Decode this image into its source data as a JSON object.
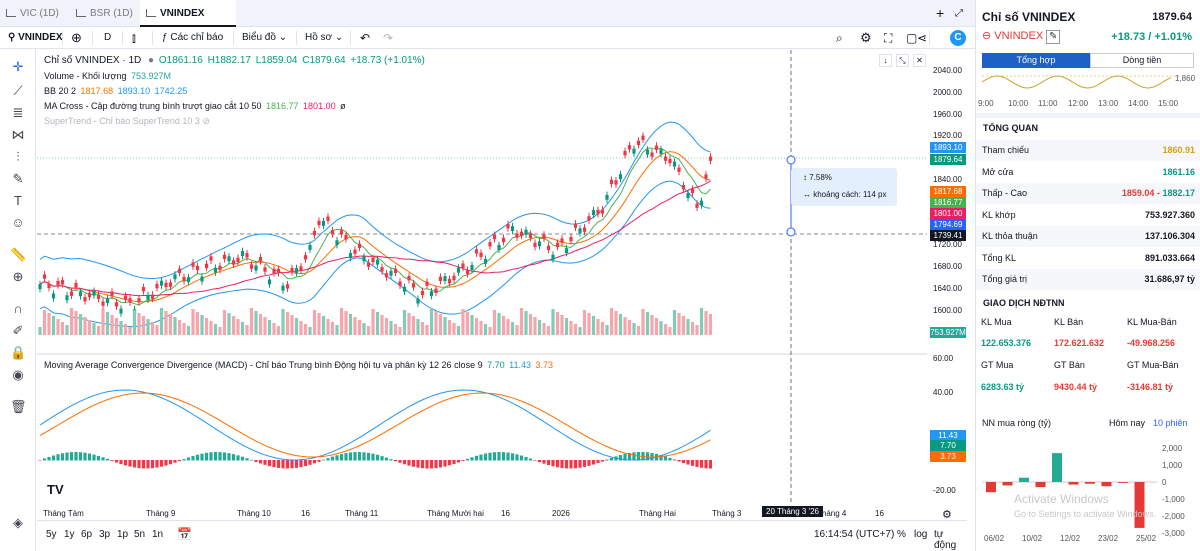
{
  "tabs": [
    {
      "label": "VIC (1D)"
    },
    {
      "label": "BSR (1D)"
    },
    {
      "label": "VNINDEX (1D)"
    }
  ],
  "toolbar": {
    "symbol": "VNINDEX",
    "interval": "D",
    "indicators": "Các chỉ báo",
    "chart_type": "Biểu đồ",
    "profile": "Hồ sơ"
  },
  "legend": {
    "main": {
      "name": "Chỉ số VNINDEX · 1D",
      "o": "O1861.16",
      "h": "H1882.17",
      "l": "L1859.04",
      "c": "C1879.64",
      "chg": "+18.73 (+1.01%)"
    },
    "volume": {
      "name": "Volume - Khối lượng",
      "value": "753.927M"
    },
    "bb": {
      "name": "BB 20 2",
      "v1": "1817.68",
      "v2": "1893.10",
      "v3": "1742.25"
    },
    "ma": {
      "name": "MA Cross - Cập đường trung bình trượt giao cắt 10 50",
      "v1": "1816.77",
      "v2": "1801.00",
      "v3": "ø"
    },
    "st": {
      "name": "SuperTrend - Chỉ báo SuperTrend 10 3"
    },
    "macd": {
      "name": "Moving Average Convergence Divergence (MACD) - Chỉ báo Trung bình Động hội tụ và phân kỳ 12 26 close 9",
      "v1": "7.70",
      "v2": "11.43",
      "v3": "3.73"
    }
  },
  "price_axis": [
    "2040.00",
    "2000.00",
    "1960.00",
    "1920.00",
    "1880.00",
    "1840.00",
    "1800.00",
    "1760.00",
    "1720.00",
    "1680.00",
    "1640.00",
    "1600.00"
  ],
  "macd_axis": [
    "60.00",
    "40.00",
    "20.00",
    "-20.00"
  ],
  "badges": [
    {
      "label": "1893.10",
      "color": "#2196f3"
    },
    {
      "label": "1879.64",
      "color": "#089981"
    },
    {
      "label": "1817.68",
      "color": "#ff6d00"
    },
    {
      "label": "1816.77",
      "color": "#4caf50"
    },
    {
      "label": "1801.00",
      "color": "#e91e63"
    },
    {
      "label": "1794.69",
      "color": "#2962ff"
    },
    {
      "label": "1739.41",
      "color": "#131722"
    },
    {
      "label": "753.927M",
      "color": "#26a69a"
    },
    {
      "label": "11.43",
      "color": "#2196f3"
    },
    {
      "label": "7.70",
      "color": "#089981"
    },
    {
      "label": "3.73",
      "color": "#ff6d00"
    }
  ],
  "measure": {
    "pct": "7.58%",
    "dist": "khoảng cách: 114 px"
  },
  "time_axis": [
    "Tháng Tám",
    "Tháng 9",
    "Tháng 10",
    "16",
    "Tháng 11",
    "Tháng Mười hai",
    "16",
    "2026",
    "Tháng Hai",
    "Tháng 3",
    "20 Tháng 3 '26",
    "Tháng 4",
    "16"
  ],
  "bottom": {
    "ranges": [
      "5y",
      "1y",
      "6p",
      "3p",
      "1p",
      "5n",
      "1n"
    ],
    "time": "16:14:54 (UTC+7)",
    "pct": "%",
    "log": "log",
    "auto": "tự động"
  },
  "panel": {
    "title": "Chỉ số VNINDEX",
    "price": "1879.64",
    "symbol": "VNINDEX",
    "change": "+18.73 / +1.01%",
    "tab1": "Tổng hợp",
    "tab2": "Dòng tiền",
    "spark_level": "1,860",
    "spark_times": [
      "9:00",
      "10:00",
      "11:00",
      "12:00",
      "13:00",
      "14:00",
      "15:00"
    ],
    "overview_title": "TỔNG QUAN",
    "rows": [
      {
        "label": "Tham chiếu",
        "value": "1860.91",
        "cls": "gold"
      },
      {
        "label": "Mở cửa",
        "value": "1861.16",
        "cls": "green"
      },
      {
        "label": "Thấp - Cao",
        "value": "1859.04",
        "value2": "1882.17",
        "cls": "red"
      },
      {
        "label": "KL khớp",
        "value": "753.927.360",
        "cls": ""
      },
      {
        "label": "KL thỏa thuận",
        "value": "137.106.304",
        "cls": ""
      },
      {
        "label": "Tổng KL",
        "value": "891.033.664",
        "cls": ""
      },
      {
        "label": "Tổng giá trị",
        "value": "31.686,97 tỷ",
        "cls": ""
      }
    ],
    "ndt_title": "GIAO DỊCH NĐTNN",
    "ndt_headers": [
      "KL Mua",
      "KL Bán",
      "KL Mua-Bán"
    ],
    "ndt_values": [
      "122.653.376",
      "172.621.632",
      "-49.968.256"
    ],
    "gt_headers": [
      "GT Mua",
      "GT Bán",
      "GT Mua-Bán"
    ],
    "gt_values": [
      "6283.63 tỷ",
      "9430.44 tỷ",
      "-3146.81 tỷ"
    ],
    "nn_title": "NN mua ròng (tỷ)",
    "nn_today": "Hôm nay",
    "nn_sessions": "10 phiên",
    "nn_axis": [
      "2,000",
      "1,000",
      "0",
      "-1,000",
      "-2,000",
      "-3,000"
    ],
    "nn_dates": [
      "06/02",
      "10/02",
      "12/02",
      "23/02",
      "25/02"
    ],
    "nn_values": [
      -600,
      -200,
      250,
      -300,
      1700,
      -150,
      -100,
      -250,
      -50,
      -2700
    ],
    "watermark1": "Activate Windows",
    "watermark2": "Go to Settings to activate Windows."
  },
  "colors": {
    "up": "#089981",
    "down": "#f23645",
    "accent": "#2962ff"
  }
}
